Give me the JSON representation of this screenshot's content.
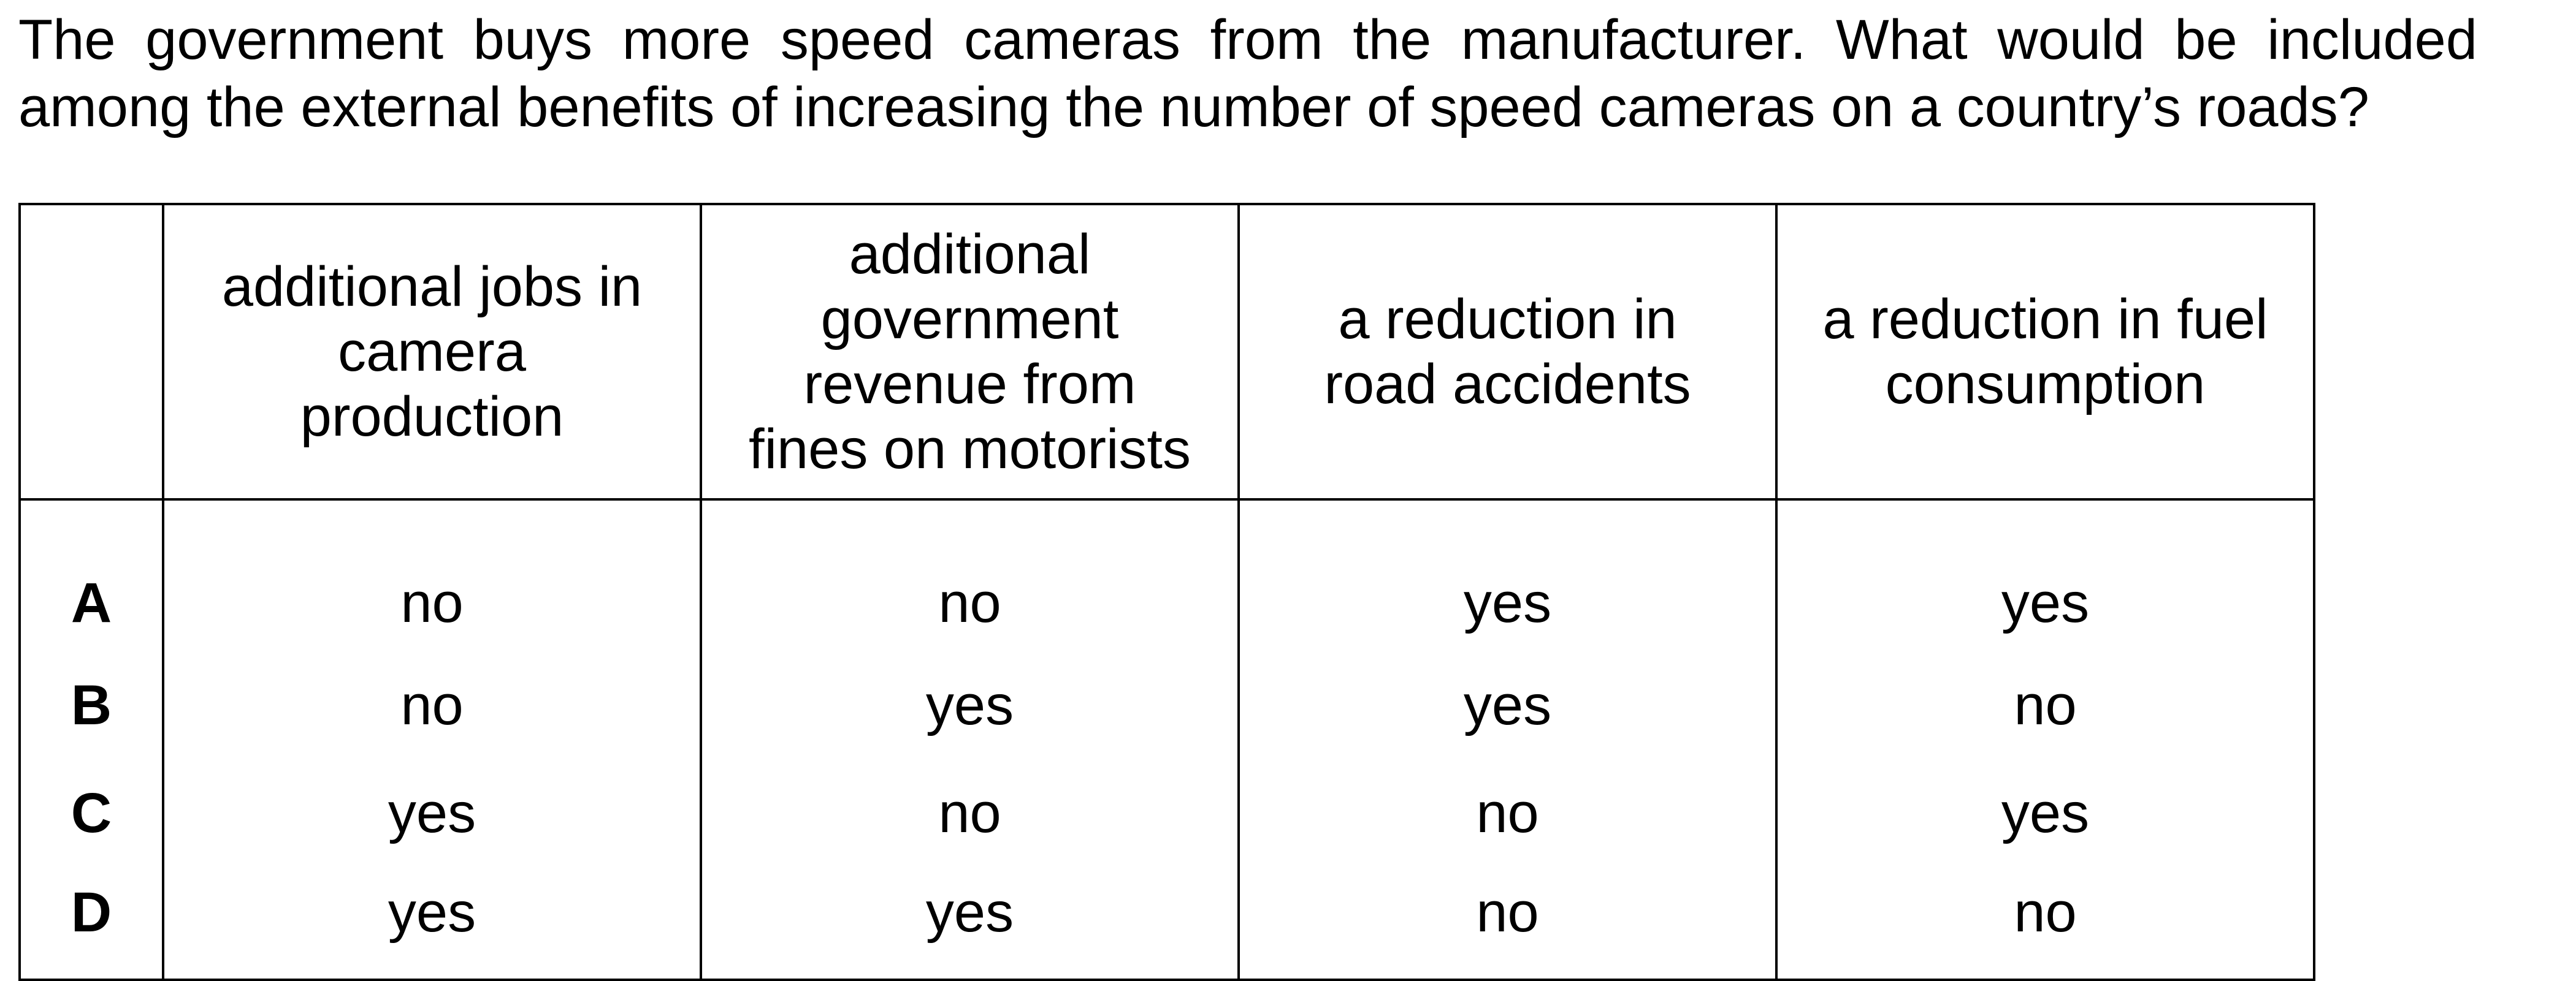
{
  "question": "The government buys more speed cameras from the manufacturer. What would be included among the external benefits of increasing the number of speed cameras on a country’s roads?",
  "table": {
    "headers": [
      "",
      "additional jobs in camera production",
      "additional government revenue from fines on motorists",
      "a reduction in road accidents",
      "a reduction in fuel consumption"
    ],
    "rows": [
      {
        "letter": "A",
        "cells": [
          "no",
          "no",
          "yes",
          "yes"
        ]
      },
      {
        "letter": "B",
        "cells": [
          "no",
          "yes",
          "yes",
          "no"
        ]
      },
      {
        "letter": "C",
        "cells": [
          "yes",
          "no",
          "no",
          "yes"
        ]
      },
      {
        "letter": "D",
        "cells": [
          "yes",
          "yes",
          "no",
          "no"
        ]
      }
    ]
  }
}
